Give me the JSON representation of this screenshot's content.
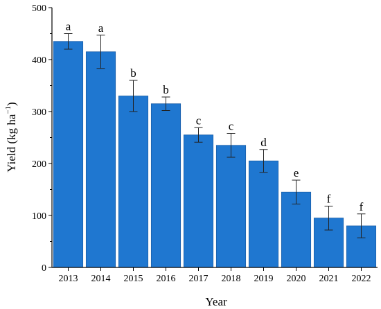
{
  "chart_data": {
    "type": "bar",
    "title": "",
    "xlabel": "Year",
    "ylabel_main": "Yield (kg ha",
    "ylabel_sup": "−1",
    "ylabel_close": ")",
    "ylim": [
      0,
      500
    ],
    "yticks": [
      0,
      100,
      200,
      300,
      400,
      500
    ],
    "categories": [
      "2013",
      "2014",
      "2015",
      "2016",
      "2017",
      "2018",
      "2019",
      "2020",
      "2021",
      "2022"
    ],
    "values": [
      435,
      415,
      330,
      315,
      255,
      235,
      205,
      145,
      95,
      80
    ],
    "errors": [
      15,
      32,
      30,
      13,
      14,
      23,
      22,
      23,
      23,
      23
    ],
    "significance": [
      "a",
      "a",
      "b",
      "b",
      "c",
      "c",
      "d",
      "e",
      "f",
      "f"
    ],
    "bar_color": "#1f77d0",
    "grid": false,
    "legend": "none"
  }
}
